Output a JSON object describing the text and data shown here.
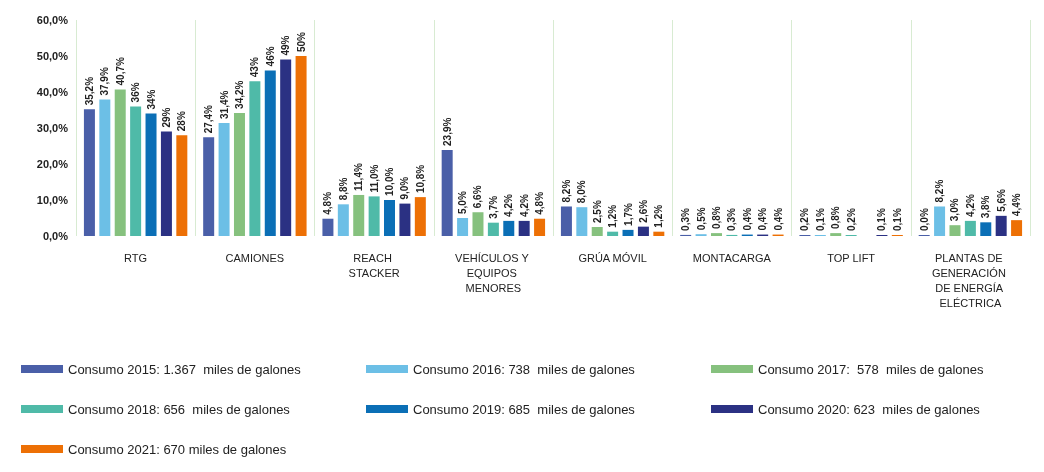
{
  "chart_data": {
    "type": "bar",
    "categories": [
      "RTG",
      "CAMIONES",
      "REACH STACKER",
      "VEHÍCULOS Y EQUIPOS MENORES",
      "GRÚA MÓVIL",
      "MONTACARGA",
      "TOP LIFT",
      "PLANTAS DE GENERACIÓN DE ENERGÍA ELÉCTRICA"
    ],
    "series": [
      {
        "name": "Consumo 2015: 1.367  miles de galones",
        "color": "#4a5fa8",
        "values": [
          35.2,
          27.4,
          4.8,
          23.9,
          8.2,
          0.3,
          0.2,
          0.0
        ],
        "value_labels": [
          "35,2%",
          "27,4%",
          "4,8%",
          "23,9%",
          "8,2%",
          "0,3%",
          "0,2%",
          "0,0%"
        ]
      },
      {
        "name": "Consumo 2016: 738  miles de galones",
        "color": "#6cbfe6",
        "values": [
          37.9,
          31.4,
          8.8,
          5.0,
          8.0,
          0.5,
          0.1,
          8.2
        ],
        "value_labels": [
          "37,9%",
          "31,4%",
          "8,8%",
          "5,0%",
          "8,0%",
          "0,5%",
          "0,1%",
          "8,2%"
        ]
      },
      {
        "name": "Consumo 2017:  578  miles de galones",
        "color": "#86c17e",
        "values": [
          40.7,
          34.2,
          11.4,
          6.6,
          2.5,
          0.8,
          0.8,
          3.0
        ],
        "value_labels": [
          "40,7%",
          "34,2%",
          "11,4%",
          "6,6%",
          "2,5%",
          "0,8%",
          "0,8%",
          "3,0%"
        ]
      },
      {
        "name": "Consumo 2018: 656  miles de galones",
        "color": "#4fbaa8",
        "values": [
          36,
          43,
          11.0,
          3.7,
          1.2,
          0.3,
          0.2,
          4.2
        ],
        "value_labels": [
          "36%",
          "43%",
          "11,0%",
          "3,7%",
          "1,2%",
          "0,3%",
          "0,2%",
          "4,2%"
        ]
      },
      {
        "name": "Consumo 2019: 685  miles de galones",
        "color": "#0b6fb6",
        "values": [
          34,
          46,
          10.0,
          4.2,
          1.7,
          0.4,
          null,
          3.8
        ],
        "value_labels": [
          "34%",
          "46%",
          "10,0%",
          "4,2%",
          "1,7%",
          "0,4%",
          null,
          "3,8%"
        ]
      },
      {
        "name": "Consumo 2020: 623  miles de galones",
        "color": "#2b3183",
        "values": [
          29,
          49,
          9.0,
          4.2,
          2.6,
          0.4,
          0.1,
          5.6
        ],
        "value_labels": [
          "29%",
          "49%",
          "9,0%",
          "4,2%",
          "2,6%",
          "0,4%",
          "0,1%",
          "5,6%"
        ]
      },
      {
        "name": "Consumo 2021: 670 miles de galones",
        "color": "#ed7005",
        "values": [
          28,
          50,
          10.8,
          4.8,
          1.2,
          0.4,
          0.1,
          4.4
        ],
        "value_labels": [
          "28%",
          "50%",
          "10,8%",
          "4,8%",
          "1,2%",
          "0,4%",
          "0,1%",
          "4,4%"
        ]
      }
    ],
    "ylim": [
      0,
      60
    ],
    "yticks": [
      {
        "value": 0,
        "label": "0,0%"
      },
      {
        "value": 10,
        "label": "10,0%"
      },
      {
        "value": 20,
        "label": "20,0%"
      },
      {
        "value": 30,
        "label": "30,0%"
      },
      {
        "value": 40,
        "label": "40,0%"
      },
      {
        "value": 50,
        "label": "50,0%"
      },
      {
        "value": 60,
        "label": "60,0%"
      }
    ],
    "grid": "x",
    "legend": "bottom"
  }
}
